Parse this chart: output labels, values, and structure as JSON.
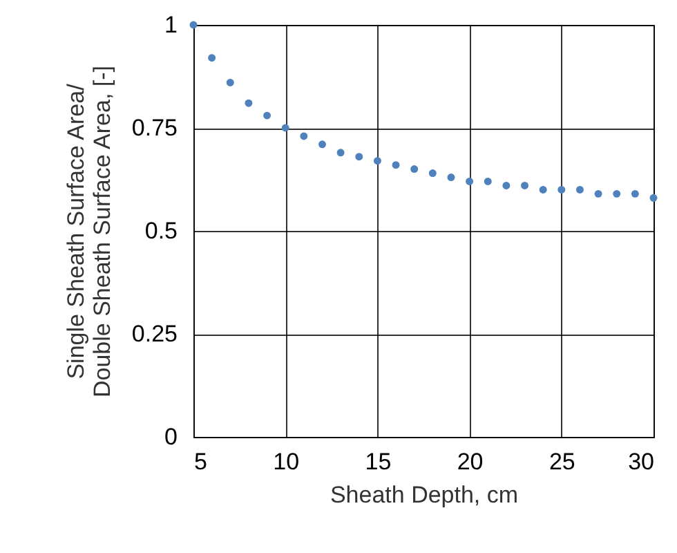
{
  "chart_data": {
    "type": "scatter",
    "xlabel": "Sheath Depth, cm",
    "ylabel": "Single Sheath Surface Area/\nDouble Sheath Surface Area, [-]",
    "x": [
      5,
      6,
      7,
      8,
      9,
      10,
      11,
      12,
      13,
      14,
      15,
      16,
      17,
      18,
      19,
      20,
      21,
      22,
      23,
      24,
      25,
      26,
      27,
      28,
      29,
      30
    ],
    "series": [
      {
        "color": "#4f81bd",
        "values": [
          1,
          0.92,
          0.86,
          0.81,
          0.78,
          0.75,
          0.73,
          0.71,
          0.69,
          0.68,
          0.67,
          0.66,
          0.65,
          0.64,
          0.63,
          0.62,
          0.62,
          0.61,
          0.61,
          0.6,
          0.6,
          0.6,
          0.59,
          0.59,
          0.59,
          0.58
        ]
      }
    ],
    "xlim": [
      5,
      30
    ],
    "xticks": [
      5,
      10,
      15,
      20,
      25,
      30
    ],
    "ylim": [
      0,
      1
    ],
    "yticks": [
      0,
      0.25,
      0.5,
      0.75,
      1
    ],
    "grid": true,
    "marker": "circle"
  }
}
